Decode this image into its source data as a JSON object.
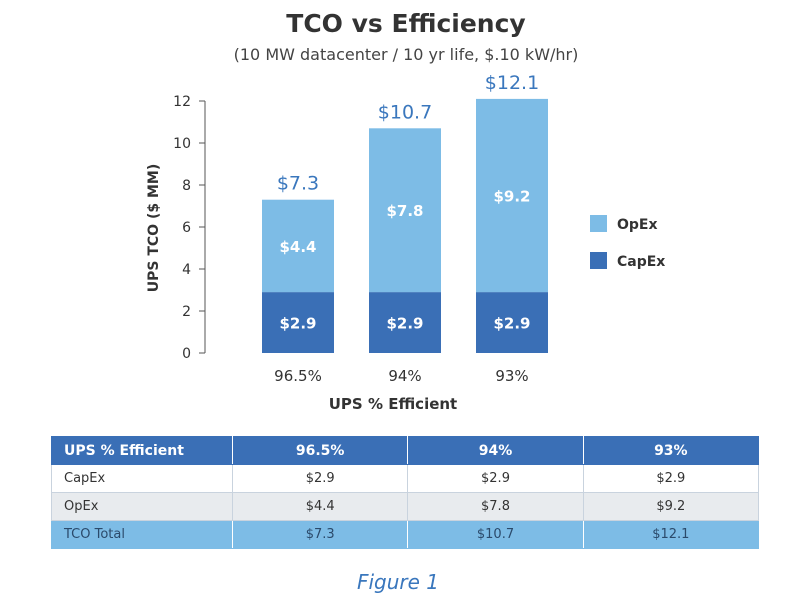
{
  "chart_data": {
    "type": "bar",
    "stacked": true,
    "title": "TCO vs Efficiency",
    "subtitle": "(10 MW datacenter / 10 yr life, $.10 kW/hr)",
    "xlabel": "UPS % Efficient",
    "ylabel": "UPS TCO ($ MM)",
    "categories": [
      "96.5%",
      "94%",
      "93%"
    ],
    "series": [
      {
        "name": "CapEx",
        "values": [
          2.9,
          2.9,
          2.9
        ],
        "labels": [
          "$2.9",
          "$2.9",
          "$2.9"
        ],
        "color": "#3a6fb6",
        "label_color": "#ffffff"
      },
      {
        "name": "OpEx",
        "values": [
          4.4,
          7.8,
          9.2
        ],
        "labels": [
          "$4.4",
          "$7.8",
          "$9.2"
        ],
        "color": "#7dbce6",
        "label_color": "#ffffff"
      }
    ],
    "totals": [
      7.3,
      10.7,
      12.1
    ],
    "total_labels": [
      "$7.3",
      "$10.7",
      "$12.1"
    ],
    "total_label_color": "#3a77bd",
    "ylim": [
      0,
      12
    ],
    "yticks": [
      0,
      2,
      4,
      6,
      8,
      10,
      12
    ],
    "grid": false,
    "legend": {
      "placement": "right",
      "order": [
        "OpEx",
        "CapEx"
      ]
    }
  },
  "table": {
    "header": [
      "UPS % Efficient",
      "96.5%",
      "94%",
      "93%"
    ],
    "rows": [
      {
        "label": "CapEx",
        "cells": [
          "$2.9",
          "$2.9",
          "$2.9"
        ]
      },
      {
        "label": "OpEx",
        "cells": [
          "$4.4",
          "$7.8",
          "$9.2"
        ]
      },
      {
        "label": "TCO Total",
        "cells": [
          "$7.3",
          "$10.7",
          "$12.1"
        ]
      }
    ]
  },
  "caption": "Figure 1"
}
